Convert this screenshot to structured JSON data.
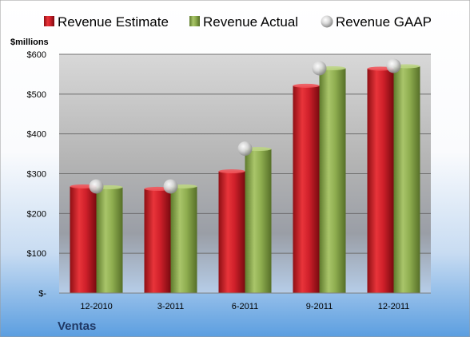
{
  "chart_data": {
    "type": "bar",
    "company": "Ventas",
    "unit_label": "$millions",
    "categories": [
      "12-2010",
      "3-2011",
      "6-2011",
      "9-2011",
      "12-2011"
    ],
    "series": [
      {
        "name": "Revenue Estimate",
        "type": "bar",
        "color": "#d0202a",
        "values": [
          268,
          262,
          306,
          521,
          564
        ]
      },
      {
        "name": "Revenue Actual",
        "type": "bar",
        "color": "#8fae50",
        "values": [
          266,
          268,
          362,
          565,
          570
        ]
      },
      {
        "name": "Revenue GAAP",
        "type": "marker",
        "color": "#c8c8c8",
        "values": [
          268,
          268,
          363,
          565,
          571
        ]
      }
    ],
    "y_ticks": [
      {
        "value": 0,
        "label": "$-"
      },
      {
        "value": 100,
        "label": "$100"
      },
      {
        "value": 200,
        "label": "$200"
      },
      {
        "value": 300,
        "label": "$300"
      },
      {
        "value": 400,
        "label": "$400"
      },
      {
        "value": 500,
        "label": "$500"
      },
      {
        "value": 600,
        "label": "$600"
      }
    ],
    "ylim": [
      0,
      600
    ],
    "grid": true,
    "legend_position": "top"
  }
}
